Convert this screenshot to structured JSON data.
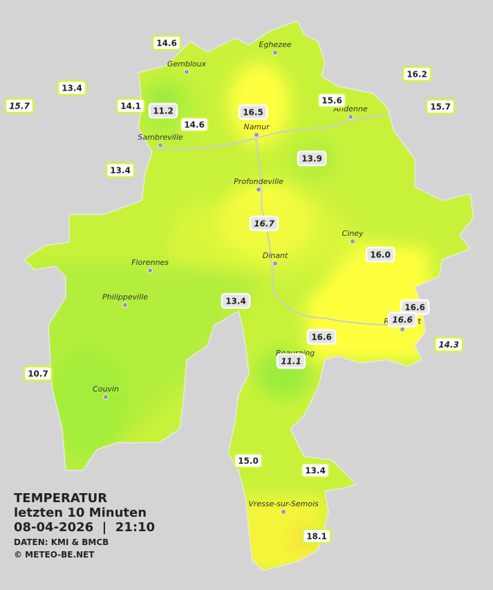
{
  "info": {
    "title": "TEMPERATUR",
    "subtitle": "letzten 10 Minuten",
    "timestamp": "08-04-2026  |  21:10",
    "source": "DATEN: KMI & BMCB",
    "credit": "© METEO-BE.NET"
  },
  "cities": [
    "Eghezee",
    "Gembloux",
    "Andenne",
    "Namur",
    "Sambreville",
    "Profondeville",
    "Ciney",
    "Dinant",
    "Florennes",
    "Philippeville",
    "Couvin",
    "Beauraing",
    "Rochefort",
    "Vresse-sur-Semois"
  ],
  "stations": [
    "14.6",
    "13.4",
    "15.7",
    "14.1",
    "11.2",
    "14.6",
    "16.5",
    "15.6",
    "16.2",
    "15.7",
    "13.4",
    "13.9",
    "16.7",
    "16.0",
    "13.4",
    "16.6",
    "16.6",
    "14.3",
    "16.6",
    "11.1",
    "10.7",
    "15.0",
    "13.4",
    "18.1"
  ]
}
